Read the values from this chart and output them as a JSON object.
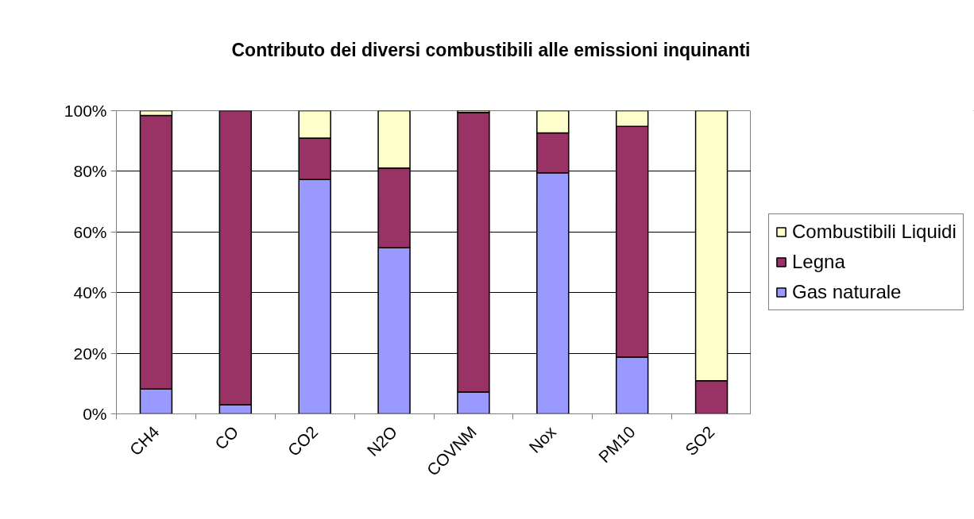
{
  "chart_data": {
    "type": "bar",
    "title": "Contributo dei diversi combustibili alle emissioni inquinanti",
    "categories": [
      "CH4",
      "CO",
      "CO2",
      "N2O",
      "COVNM",
      "Nox",
      "PM10",
      "SO2"
    ],
    "stacked": true,
    "series": [
      {
        "name": "Gas naturale",
        "color": "#9999ff",
        "values": [
          8.2,
          3.0,
          77.3,
          54.8,
          7.2,
          79.5,
          18.7,
          0
        ]
      },
      {
        "name": "Legna",
        "color": "#993366",
        "values": [
          90.2,
          97.0,
          13.7,
          26.3,
          92.2,
          13.2,
          76.1,
          10.9
        ]
      },
      {
        "name": "Combustibili Liquidi",
        "color": "#ffffcc",
        "values": [
          1.6,
          0,
          9.0,
          18.9,
          0.6,
          7.3,
          5.2,
          89.1
        ]
      }
    ],
    "ylim": [
      0,
      100
    ],
    "yticks": [
      {
        "value": 0,
        "label": "0%"
      },
      {
        "value": 20,
        "label": "20%"
      },
      {
        "value": 40,
        "label": "40%"
      },
      {
        "value": 60,
        "label": "60%"
      },
      {
        "value": 80,
        "label": "80%"
      },
      {
        "value": 100,
        "label": "100%"
      }
    ],
    "grid": "y",
    "legend": "right"
  }
}
